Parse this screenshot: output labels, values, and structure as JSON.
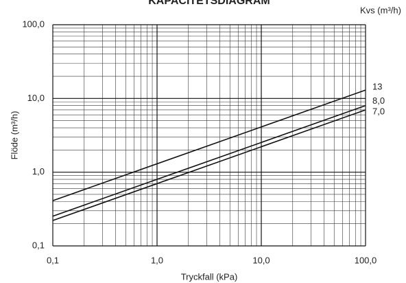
{
  "chart_data": {
    "type": "line",
    "title": "KAPACITETSDIAGRAM",
    "legend_title": "Kvs (m³/h)",
    "x_label": "Tryckfall (kPa)",
    "y_label": "Flöde (m³/h)",
    "log_x": true,
    "log_y": true,
    "grid": true,
    "x": [
      0.1,
      100
    ],
    "series": [
      {
        "name": "13",
        "color": "#111111",
        "values": [
          0.411,
          13
        ]
      },
      {
        "name": "8,0",
        "color": "#111111",
        "values": [
          0.253,
          8
        ]
      },
      {
        "name": "7,0",
        "color": "#111111",
        "values": [
          0.221,
          7
        ]
      }
    ],
    "xlim": [
      0.1,
      100
    ],
    "ylim": [
      0.1,
      100
    ],
    "xticks": [
      {
        "value": 0.1,
        "label": "0,1"
      },
      {
        "value": 1,
        "label": "1,0"
      },
      {
        "value": 10,
        "label": "10,0"
      },
      {
        "value": 100,
        "label": "100,0"
      }
    ],
    "yticks": [
      {
        "value": 0.1,
        "label": "0,1"
      },
      {
        "value": 1,
        "label": "1,0"
      },
      {
        "value": 10,
        "label": "10,0"
      },
      {
        "value": 100,
        "label": "100,0"
      }
    ]
  }
}
